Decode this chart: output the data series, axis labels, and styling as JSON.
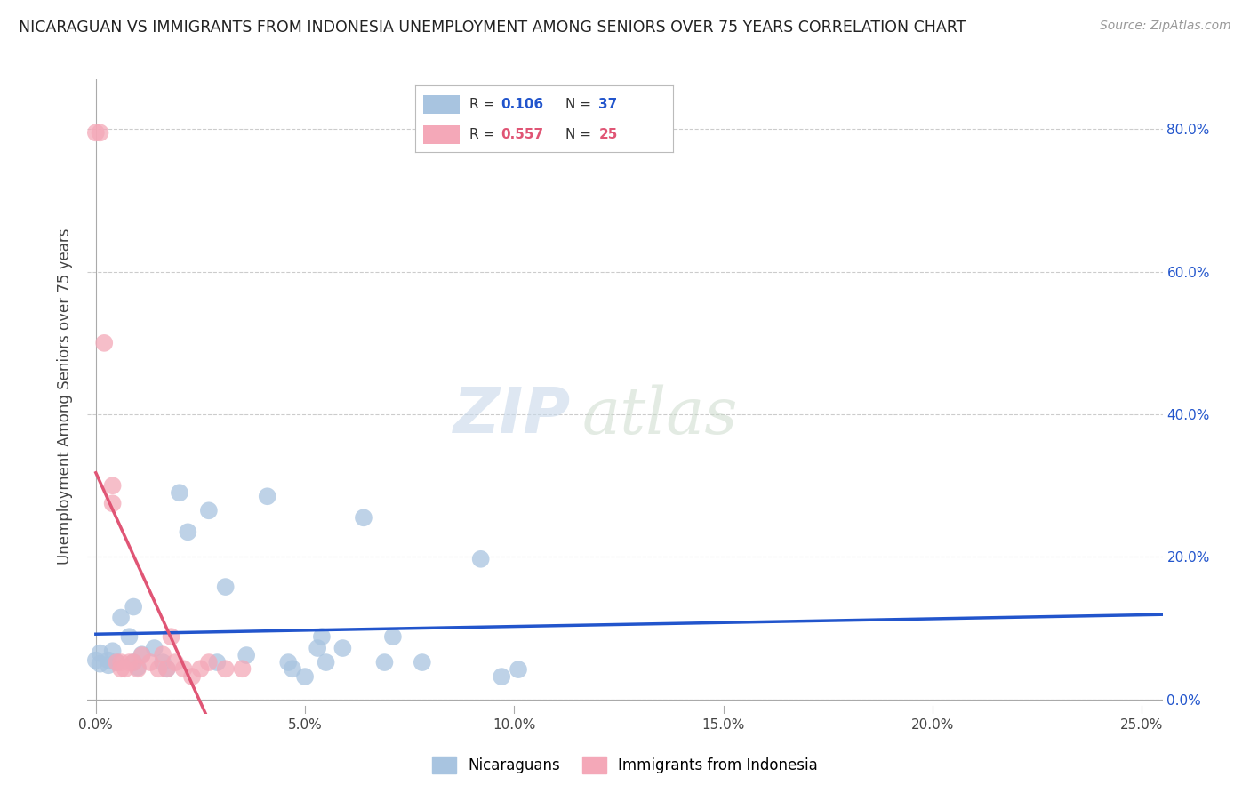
{
  "title": "NICARAGUAN VS IMMIGRANTS FROM INDONESIA UNEMPLOYMENT AMONG SENIORS OVER 75 YEARS CORRELATION CHART",
  "source": "Source: ZipAtlas.com",
  "ylabel": "Unemployment Among Seniors over 75 years",
  "x_tick_labels": [
    "0.0%",
    "5.0%",
    "10.0%",
    "15.0%",
    "20.0%",
    "25.0%"
  ],
  "x_tick_values": [
    0.0,
    0.05,
    0.1,
    0.15,
    0.2,
    0.25
  ],
  "y_tick_labels": [
    "0.0%",
    "20.0%",
    "40.0%",
    "60.0%",
    "80.0%"
  ],
  "y_tick_values": [
    0.0,
    0.2,
    0.4,
    0.6,
    0.8
  ],
  "xlim": [
    -0.002,
    0.255
  ],
  "ylim": [
    -0.02,
    0.87
  ],
  "legend_blue_label": "Nicaraguans",
  "legend_pink_label": "Immigrants from Indonesia",
  "R_blue": 0.106,
  "N_blue": 37,
  "R_pink": 0.557,
  "N_pink": 25,
  "blue_color": "#a8c4e0",
  "pink_color": "#f4a8b8",
  "blue_line_color": "#2255cc",
  "pink_line_color": "#e05575",
  "blue_scatter": [
    [
      0.0,
      0.055
    ],
    [
      0.001,
      0.065
    ],
    [
      0.001,
      0.05
    ],
    [
      0.003,
      0.055
    ],
    [
      0.003,
      0.048
    ],
    [
      0.004,
      0.068
    ],
    [
      0.005,
      0.052
    ],
    [
      0.006,
      0.115
    ],
    [
      0.008,
      0.088
    ],
    [
      0.009,
      0.13
    ],
    [
      0.009,
      0.052
    ],
    [
      0.01,
      0.045
    ],
    [
      0.011,
      0.063
    ],
    [
      0.014,
      0.072
    ],
    [
      0.016,
      0.052
    ],
    [
      0.017,
      0.043
    ],
    [
      0.02,
      0.29
    ],
    [
      0.022,
      0.235
    ],
    [
      0.027,
      0.265
    ],
    [
      0.029,
      0.052
    ],
    [
      0.031,
      0.158
    ],
    [
      0.036,
      0.062
    ],
    [
      0.041,
      0.285
    ],
    [
      0.046,
      0.052
    ],
    [
      0.047,
      0.043
    ],
    [
      0.05,
      0.032
    ],
    [
      0.053,
      0.072
    ],
    [
      0.054,
      0.088
    ],
    [
      0.055,
      0.052
    ],
    [
      0.059,
      0.072
    ],
    [
      0.064,
      0.255
    ],
    [
      0.069,
      0.052
    ],
    [
      0.071,
      0.088
    ],
    [
      0.078,
      0.052
    ],
    [
      0.092,
      0.197
    ],
    [
      0.097,
      0.032
    ],
    [
      0.101,
      0.042
    ]
  ],
  "pink_scatter": [
    [
      0.0,
      0.795
    ],
    [
      0.001,
      0.795
    ],
    [
      0.002,
      0.5
    ],
    [
      0.004,
      0.3
    ],
    [
      0.004,
      0.275
    ],
    [
      0.005,
      0.052
    ],
    [
      0.006,
      0.052
    ],
    [
      0.006,
      0.043
    ],
    [
      0.007,
      0.043
    ],
    [
      0.008,
      0.052
    ],
    [
      0.009,
      0.052
    ],
    [
      0.01,
      0.043
    ],
    [
      0.011,
      0.062
    ],
    [
      0.013,
      0.052
    ],
    [
      0.015,
      0.043
    ],
    [
      0.016,
      0.063
    ],
    [
      0.017,
      0.043
    ],
    [
      0.018,
      0.088
    ],
    [
      0.019,
      0.052
    ],
    [
      0.021,
      0.043
    ],
    [
      0.023,
      0.032
    ],
    [
      0.025,
      0.043
    ],
    [
      0.027,
      0.052
    ],
    [
      0.031,
      0.043
    ],
    [
      0.035,
      0.043
    ]
  ],
  "watermark_zip": "ZIP",
  "watermark_atlas": "atlas",
  "background_color": "#ffffff",
  "grid_color": "#cccccc"
}
